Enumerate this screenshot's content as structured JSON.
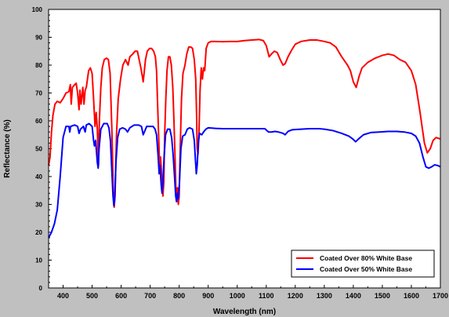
{
  "chart_data": {
    "type": "line",
    "title": "",
    "xlabel": "Wavelength (nm)",
    "ylabel": "Reflectance (%)",
    "xlim": [
      350,
      1700
    ],
    "ylim": [
      0,
      100
    ],
    "xticks": [
      400,
      500,
      600,
      700,
      800,
      900,
      1000,
      1100,
      1200,
      1300,
      1400,
      1500,
      1600,
      1700
    ],
    "yticks": [
      0,
      10,
      20,
      30,
      40,
      50,
      60,
      70,
      80,
      90,
      100
    ],
    "grid": false,
    "legend_position": "bottom-right",
    "series": [
      {
        "name": "Coated Over 80% White Base",
        "color": "#ff0000",
        "points": [
          [
            350,
            44
          ],
          [
            355,
            47
          ],
          [
            360,
            56
          ],
          [
            365,
            62
          ],
          [
            372,
            66
          ],
          [
            380,
            67
          ],
          [
            390,
            66.5
          ],
          [
            400,
            68
          ],
          [
            410,
            70
          ],
          [
            420,
            70.5
          ],
          [
            425,
            73
          ],
          [
            428,
            66
          ],
          [
            432,
            72
          ],
          [
            440,
            73
          ],
          [
            445,
            73.5
          ],
          [
            450,
            70
          ],
          [
            455,
            64
          ],
          [
            458,
            71
          ],
          [
            462,
            66
          ],
          [
            468,
            72
          ],
          [
            472,
            66
          ],
          [
            476,
            71
          ],
          [
            480,
            72
          ],
          [
            488,
            78
          ],
          [
            494,
            79
          ],
          [
            500,
            77
          ],
          [
            505,
            68
          ],
          [
            510,
            58
          ],
          [
            514,
            63
          ],
          [
            518,
            57
          ],
          [
            522,
            44
          ],
          [
            525,
            60
          ],
          [
            530,
            72
          ],
          [
            535,
            79
          ],
          [
            542,
            82
          ],
          [
            550,
            82.5
          ],
          [
            556,
            82
          ],
          [
            562,
            77
          ],
          [
            568,
            57
          ],
          [
            573,
            35
          ],
          [
            576,
            29
          ],
          [
            579,
            33
          ],
          [
            584,
            55
          ],
          [
            590,
            68
          ],
          [
            598,
            75
          ],
          [
            606,
            80
          ],
          [
            615,
            82
          ],
          [
            624,
            80
          ],
          [
            630,
            83
          ],
          [
            640,
            84
          ],
          [
            648,
            85
          ],
          [
            656,
            85
          ],
          [
            662,
            82
          ],
          [
            668,
            79
          ],
          [
            673,
            76
          ],
          [
            676,
            74
          ],
          [
            679,
            77
          ],
          [
            684,
            82
          ],
          [
            690,
            85
          ],
          [
            698,
            86
          ],
          [
            705,
            86
          ],
          [
            712,
            85
          ],
          [
            718,
            83
          ],
          [
            722,
            78
          ],
          [
            726,
            65
          ],
          [
            730,
            52
          ],
          [
            733,
            42
          ],
          [
            736,
            47
          ],
          [
            740,
            40
          ],
          [
            744,
            33
          ],
          [
            747,
            38
          ],
          [
            750,
            55
          ],
          [
            754,
            68
          ],
          [
            758,
            78
          ],
          [
            763,
            83
          ],
          [
            768,
            83
          ],
          [
            773,
            80
          ],
          [
            778,
            72
          ],
          [
            782,
            60
          ],
          [
            786,
            46
          ],
          [
            789,
            34
          ],
          [
            791,
            31
          ],
          [
            794,
            36
          ],
          [
            797,
            30
          ],
          [
            800,
            33
          ],
          [
            804,
            52
          ],
          [
            808,
            68
          ],
          [
            813,
            77
          ],
          [
            820,
            80
          ],
          [
            826,
            84
          ],
          [
            833,
            86.5
          ],
          [
            840,
            86.5
          ],
          [
            846,
            86
          ],
          [
            852,
            82
          ],
          [
            857,
            75
          ],
          [
            860,
            62
          ],
          [
            862,
            50
          ],
          [
            865,
            48
          ],
          [
            868,
            55
          ],
          [
            872,
            71
          ],
          [
            876,
            79
          ],
          [
            880,
            75
          ],
          [
            884,
            79
          ],
          [
            888,
            78
          ],
          [
            893,
            86
          ],
          [
            900,
            88
          ],
          [
            910,
            88.5
          ],
          [
            925,
            88.5
          ],
          [
            950,
            88.4
          ],
          [
            975,
            88.5
          ],
          [
            1000,
            88.5
          ],
          [
            1025,
            88.8
          ],
          [
            1050,
            89
          ],
          [
            1075,
            89.2
          ],
          [
            1090,
            88.8
          ],
          [
            1100,
            87
          ],
          [
            1110,
            83
          ],
          [
            1118,
            84
          ],
          [
            1128,
            85
          ],
          [
            1138,
            84.5
          ],
          [
            1148,
            82
          ],
          [
            1158,
            80
          ],
          [
            1165,
            80.5
          ],
          [
            1175,
            83
          ],
          [
            1188,
            85.5
          ],
          [
            1200,
            87.5
          ],
          [
            1220,
            88.5
          ],
          [
            1250,
            89
          ],
          [
            1275,
            89
          ],
          [
            1300,
            88.5
          ],
          [
            1320,
            88
          ],
          [
            1340,
            86.5
          ],
          [
            1360,
            83
          ],
          [
            1380,
            80
          ],
          [
            1390,
            78
          ],
          [
            1400,
            74
          ],
          [
            1410,
            72
          ],
          [
            1420,
            76
          ],
          [
            1430,
            79
          ],
          [
            1450,
            81
          ],
          [
            1475,
            82.5
          ],
          [
            1500,
            83.5
          ],
          [
            1520,
            84
          ],
          [
            1540,
            83.5
          ],
          [
            1560,
            82
          ],
          [
            1580,
            81
          ],
          [
            1600,
            78
          ],
          [
            1615,
            73
          ],
          [
            1630,
            63
          ],
          [
            1645,
            52
          ],
          [
            1655,
            48.5
          ],
          [
            1665,
            50
          ],
          [
            1675,
            53
          ],
          [
            1685,
            54
          ],
          [
            1700,
            53.5
          ]
        ]
      },
      {
        "name": "Coated Over 50% White Base",
        "color": "#0000ff",
        "points": [
          [
            350,
            18
          ],
          [
            355,
            19
          ],
          [
            360,
            20
          ],
          [
            370,
            23
          ],
          [
            380,
            28
          ],
          [
            390,
            40
          ],
          [
            400,
            54
          ],
          [
            410,
            58
          ],
          [
            420,
            58
          ],
          [
            423,
            56
          ],
          [
            426,
            58
          ],
          [
            440,
            58.5
          ],
          [
            450,
            58
          ],
          [
            455,
            55.5
          ],
          [
            460,
            57
          ],
          [
            470,
            58
          ],
          [
            476,
            56
          ],
          [
            480,
            58.5
          ],
          [
            490,
            59
          ],
          [
            500,
            58
          ],
          [
            505,
            53
          ],
          [
            508,
            51
          ],
          [
            512,
            53
          ],
          [
            518,
            45
          ],
          [
            521,
            43
          ],
          [
            524,
            50
          ],
          [
            530,
            57
          ],
          [
            540,
            59
          ],
          [
            552,
            59
          ],
          [
            558,
            57.5
          ],
          [
            563,
            53
          ],
          [
            568,
            42
          ],
          [
            572,
            33
          ],
          [
            575,
            29.5
          ],
          [
            578,
            32
          ],
          [
            582,
            45
          ],
          [
            588,
            54
          ],
          [
            595,
            57
          ],
          [
            605,
            57.5
          ],
          [
            615,
            57
          ],
          [
            622,
            56
          ],
          [
            630,
            57.5
          ],
          [
            645,
            58.5
          ],
          [
            660,
            58.5
          ],
          [
            670,
            58
          ],
          [
            676,
            55
          ],
          [
            680,
            56
          ],
          [
            688,
            58
          ],
          [
            700,
            58
          ],
          [
            710,
            58
          ],
          [
            717,
            57
          ],
          [
            722,
            55
          ],
          [
            727,
            48
          ],
          [
            731,
            41
          ],
          [
            734,
            44
          ],
          [
            738,
            37
          ],
          [
            741,
            34
          ],
          [
            744,
            38
          ],
          [
            748,
            47
          ],
          [
            753,
            55
          ],
          [
            760,
            57
          ],
          [
            768,
            57
          ],
          [
            774,
            54
          ],
          [
            779,
            48
          ],
          [
            784,
            40
          ],
          [
            788,
            33
          ],
          [
            791,
            31
          ],
          [
            794,
            34
          ],
          [
            797,
            32
          ],
          [
            801,
            38
          ],
          [
            806,
            50
          ],
          [
            812,
            54.5
          ],
          [
            820,
            55
          ],
          [
            828,
            57
          ],
          [
            836,
            57.5
          ],
          [
            846,
            57
          ],
          [
            852,
            53
          ],
          [
            856,
            46
          ],
          [
            859,
            41
          ],
          [
            862,
            44
          ],
          [
            866,
            52
          ],
          [
            870,
            55.5
          ],
          [
            878,
            55
          ],
          [
            884,
            56
          ],
          [
            892,
            57
          ],
          [
            900,
            57.5
          ],
          [
            925,
            57.3
          ],
          [
            950,
            57.2
          ],
          [
            975,
            57.2
          ],
          [
            1000,
            57.2
          ],
          [
            1050,
            57.2
          ],
          [
            1095,
            57.2
          ],
          [
            1108,
            56
          ],
          [
            1118,
            56
          ],
          [
            1130,
            56.2
          ],
          [
            1142,
            56
          ],
          [
            1158,
            55.5
          ],
          [
            1165,
            55
          ],
          [
            1175,
            56.2
          ],
          [
            1190,
            56.8
          ],
          [
            1220,
            57
          ],
          [
            1250,
            57.2
          ],
          [
            1280,
            57.2
          ],
          [
            1300,
            57
          ],
          [
            1330,
            56.5
          ],
          [
            1360,
            55.5
          ],
          [
            1385,
            54.5
          ],
          [
            1398,
            53.5
          ],
          [
            1408,
            52.5
          ],
          [
            1418,
            53.5
          ],
          [
            1435,
            55
          ],
          [
            1460,
            55.8
          ],
          [
            1490,
            56
          ],
          [
            1520,
            56.2
          ],
          [
            1550,
            56.2
          ],
          [
            1575,
            56
          ],
          [
            1600,
            55.5
          ],
          [
            1615,
            54.5
          ],
          [
            1628,
            52
          ],
          [
            1640,
            47
          ],
          [
            1650,
            43.5
          ],
          [
            1660,
            43
          ],
          [
            1670,
            43.5
          ],
          [
            1680,
            44.2
          ],
          [
            1690,
            44
          ],
          [
            1700,
            43.5
          ]
        ]
      }
    ]
  }
}
